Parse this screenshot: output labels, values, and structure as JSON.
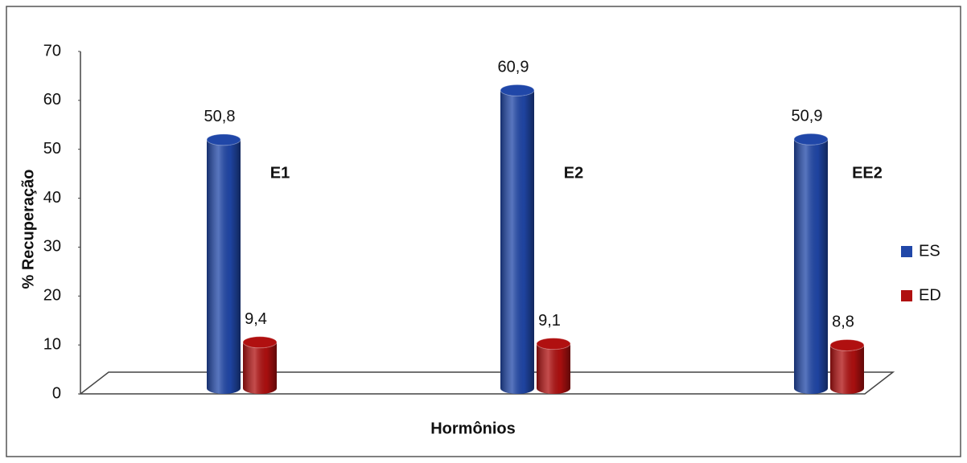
{
  "chart_data": {
    "type": "bar",
    "x_label": "Hormônios",
    "y_label": "% Recuperação",
    "categories": [
      "E1",
      "E2",
      "EE2"
    ],
    "series": [
      {
        "name": "ES",
        "color": "#2047a8",
        "values": [
          50.8,
          60.9,
          50.9
        ],
        "value_labels": [
          "50,8",
          "60,9",
          "50,9"
        ]
      },
      {
        "name": "ED",
        "color": "#b01010",
        "values": [
          9.4,
          9.1,
          8.8
        ],
        "value_labels": [
          "9,4",
          "9,1",
          "8,8"
        ]
      }
    ],
    "ylim": [
      0,
      70
    ],
    "yticks": [
      0,
      10,
      20,
      30,
      40,
      50,
      60,
      70
    ],
    "legend": "right"
  }
}
